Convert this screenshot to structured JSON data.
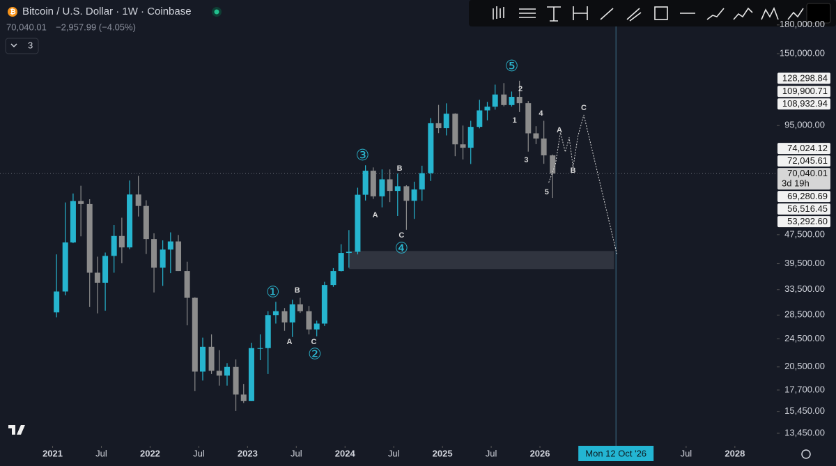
{
  "header": {
    "title": "Bitcoin / U.S. Dollar · 1W · Coinbase",
    "price": "70,040.01",
    "change": "−2,957.99 (−4.05%)",
    "indicators": "3"
  },
  "chart_data": {
    "type": "candlestick",
    "log_scale": true,
    "up_color": "#26b5cf",
    "down_color": "#8c8c8c",
    "x": [
      2021.04,
      2021.13,
      2021.21,
      2021.29,
      2021.38,
      2021.46,
      2021.54,
      2021.63,
      2021.71,
      2021.79,
      2021.88,
      2021.96,
      2022.04,
      2022.13,
      2022.21,
      2022.29,
      2022.38,
      2022.46,
      2022.54,
      2022.63,
      2022.71,
      2022.79,
      2022.88,
      2022.96,
      2023.04,
      2023.13,
      2023.21,
      2023.29,
      2023.38,
      2023.46,
      2023.54,
      2023.63,
      2023.71,
      2023.79,
      2023.88,
      2023.96,
      2024.04,
      2024.13,
      2024.21,
      2024.29,
      2024.38,
      2024.46,
      2024.54,
      2024.63,
      2024.71,
      2024.79,
      2024.88,
      2024.96,
      2025.04,
      2025.13,
      2025.21,
      2025.29,
      2025.38,
      2025.46,
      2025.54,
      2025.63,
      2025.71,
      2025.79,
      2025.88,
      2025.96,
      2026.04,
      2026.13
    ],
    "open": [
      29000,
      33100,
      45200,
      58800,
      57700,
      37300,
      35000,
      41500,
      47100,
      43800,
      61300,
      57000,
      46200,
      38500,
      43200,
      45500,
      37700,
      31800,
      19900,
      23300,
      20000,
      19400,
      20500,
      17200,
      16500,
      23100,
      23100,
      28500,
      29200,
      27200,
      30500,
      29200,
      26000,
      27000,
      34500,
      37700,
      42300,
      42600,
      61200,
      71300,
      60600,
      67500,
      62700,
      64600,
      58900,
      63300,
      70200,
      96400,
      93400,
      102400,
      84300,
      82500,
      94200,
      104600,
      107100,
      115700,
      108200,
      114000,
      109500,
      90400,
      87500,
      78600
    ],
    "high": [
      41900,
      58300,
      61700,
      64800,
      59500,
      41300,
      42400,
      50500,
      52900,
      67000,
      69000,
      59100,
      47900,
      45800,
      48200,
      47400,
      40000,
      31900,
      24700,
      25200,
      22800,
      21000,
      21500,
      18400,
      23900,
      25200,
      29200,
      31000,
      29800,
      31400,
      31800,
      30200,
      27500,
      35200,
      38400,
      44700,
      48900,
      64000,
      73800,
      72800,
      71900,
      71900,
      70000,
      65000,
      66500,
      73600,
      99600,
      108300,
      109400,
      102700,
      95000,
      97900,
      111900,
      110400,
      123200,
      124400,
      117900,
      126300,
      111000,
      94600,
      97900,
      79000
    ],
    "low": [
      28100,
      32300,
      45000,
      47000,
      30000,
      28800,
      29300,
      37300,
      39600,
      43300,
      53300,
      42000,
      32900,
      34300,
      37200,
      37700,
      26700,
      17600,
      18800,
      19600,
      18200,
      18200,
      15500,
      16300,
      16500,
      21400,
      19600,
      27000,
      25800,
      24800,
      28900,
      25200,
      24900,
      26600,
      34100,
      37600,
      38500,
      41900,
      59000,
      59600,
      56500,
      58400,
      53500,
      49000,
      52500,
      58900,
      66800,
      90500,
      89200,
      78200,
      76600,
      74400,
      93300,
      98200,
      105100,
      107300,
      107200,
      103500,
      80500,
      84400,
      74500,
      60000
    ],
    "close": [
      33100,
      45200,
      58800,
      57700,
      37300,
      35000,
      41500,
      47100,
      43800,
      61300,
      57000,
      46200,
      38500,
      43200,
      45500,
      37700,
      31800,
      19900,
      23300,
      20000,
      19400,
      20500,
      17200,
      16500,
      23100,
      23100,
      28500,
      29200,
      27200,
      30500,
      29200,
      26000,
      27000,
      34500,
      37700,
      42300,
      42600,
      61200,
      71300,
      60600,
      67500,
      62700,
      64600,
      58900,
      63300,
      70200,
      96400,
      93400,
      102400,
      84300,
      82500,
      94200,
      104600,
      107100,
      115700,
      108200,
      114000,
      109500,
      90400,
      87500,
      78600,
      70040
    ],
    "xlim": [
      2020.46,
      2028.43
    ],
    "xticks": [
      2021,
      {
        "value": 2021.5,
        "label": "Jul"
      },
      2022,
      {
        "value": 2022.5,
        "label": "Jul"
      },
      2023,
      {
        "value": 2023.5,
        "label": "Jul"
      },
      2024,
      {
        "value": 2024.5,
        "label": "Jul"
      },
      2025,
      {
        "value": 2025.5,
        "label": "Jul"
      },
      2026,
      {
        "value": 2027.5,
        "label": "Jul"
      },
      2028
    ],
    "ylim": [
      12420,
      210900
    ],
    "yticks": [
      {
        "value": 180000,
        "label": "180,000.00"
      },
      {
        "value": 150000,
        "label": "150,000.00"
      },
      {
        "value": 95000,
        "label": "95,000.00"
      },
      {
        "value": 47500,
        "label": "47,500.00"
      },
      {
        "value": 39500,
        "label": "39,500.00"
      },
      {
        "value": 33500,
        "label": "33,500.00"
      },
      {
        "value": 28500,
        "label": "28,500.00"
      },
      {
        "value": 24500,
        "label": "24,500.00"
      },
      {
        "value": 20500,
        "label": "20,500.00"
      },
      {
        "value": 17700,
        "label": "17,700.00"
      },
      {
        "value": 15450,
        "label": "15,450.00"
      },
      {
        "value": 13450,
        "label": "13,450.00"
      }
    ],
    "price_tags": [
      {
        "value": 128298.84,
        "label": "128,298.84"
      },
      {
        "value": 109900.71,
        "label": "109,900.71"
      },
      {
        "value": 108932.94,
        "label": "108,932.94"
      },
      {
        "value": 74024.12,
        "label": "74,024.12"
      },
      {
        "value": 72045.61,
        "label": "72,045.61"
      },
      {
        "value": 69280.69,
        "label": "69,280.69"
      },
      {
        "value": 56516.45,
        "label": "56,516.45"
      },
      {
        "value": 53292.6,
        "label": "53,292.60"
      }
    ],
    "last_price": {
      "value": 70040.01,
      "label": "70,040.01",
      "countdown": "3d 19h"
    },
    "annotations": [
      {
        "text": "①",
        "x": 2023.26,
        "y": 32840
      },
      {
        "text": "A",
        "x": 2023.43,
        "y": 23990
      },
      {
        "text": "B",
        "x": 2023.51,
        "y": 33270
      },
      {
        "text": "C",
        "x": 2023.68,
        "y": 23990
      },
      {
        "text": "②",
        "x": 2023.69,
        "y": 22140
      },
      {
        "text": "③",
        "x": 2024.18,
        "y": 78200
      },
      {
        "text": "A",
        "x": 2024.31,
        "y": 53700
      },
      {
        "text": "B",
        "x": 2024.56,
        "y": 72200
      },
      {
        "text": "C",
        "x": 2024.58,
        "y": 47200
      },
      {
        "text": "④",
        "x": 2024.58,
        "y": 43400
      },
      {
        "text": "⑤",
        "x": 2025.71,
        "y": 137900
      },
      {
        "text": "2",
        "x": 2025.8,
        "y": 119700
      },
      {
        "text": "1",
        "x": 2025.74,
        "y": 98000
      },
      {
        "text": "4",
        "x": 2026.01,
        "y": 102500
      },
      {
        "text": "3",
        "x": 2025.86,
        "y": 76200
      },
      {
        "text": "5",
        "x": 2026.07,
        "y": 62100
      },
      {
        "text": "A",
        "x": 2026.2,
        "y": 92100
      },
      {
        "text": "B",
        "x": 2026.34,
        "y": 71300
      },
      {
        "text": "C",
        "x": 2026.45,
        "y": 106200
      }
    ],
    "projection": {
      "x": [
        2026.09,
        2026.16,
        2026.21,
        2026.26,
        2026.3,
        2026.34,
        2026.39,
        2026.45,
        2026.79
      ],
      "y": [
        66100,
        74500,
        90900,
        80300,
        88100,
        72900,
        88900,
        101600,
        41900
      ]
    },
    "zone": {
      "x": [
        2024.04,
        2026.76
      ],
      "y": [
        38170,
        42820
      ]
    },
    "crosshair": {
      "x": 2026.78,
      "label": "Mon 12 Oct '26"
    }
  }
}
